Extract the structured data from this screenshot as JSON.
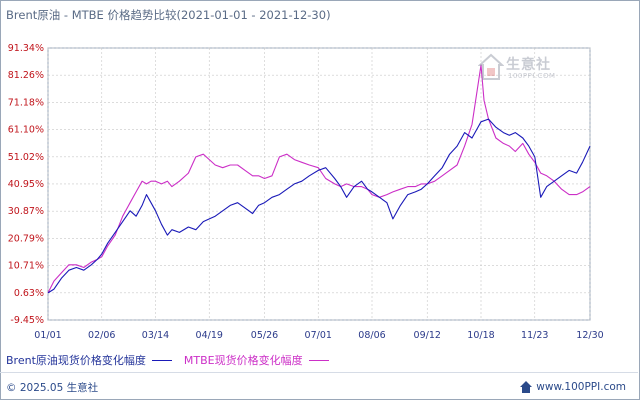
{
  "chart_data": {
    "type": "line",
    "title": "Brent原油 - MTBE 价格趋势比较(2021-01-01 - 2021-12-30)",
    "xlabel": "",
    "ylabel": "",
    "ylim": [
      -9.45,
      91.34
    ],
    "y_ticks": [
      "91.34%",
      "81.26%",
      "71.18%",
      "61.10%",
      "51.02%",
      "40.95%",
      "30.87%",
      "20.79%",
      "10.71%",
      "0.63%",
      "-9.45%"
    ],
    "y_tick_values": [
      91.34,
      81.26,
      71.18,
      61.1,
      51.02,
      40.95,
      30.87,
      20.79,
      10.71,
      0.63,
      -9.45
    ],
    "x_ticks": [
      "01/01",
      "02/06",
      "03/14",
      "04/19",
      "05/26",
      "07/01",
      "08/06",
      "09/12",
      "10/18",
      "11/23",
      "12/30"
    ],
    "grid": true,
    "legend_position": "bottom",
    "series": [
      {
        "name": "Brent原油现货价格变化幅度",
        "color": "#1a1ab8",
        "points": [
          [
            "01/01",
            0.6
          ],
          [
            "01/05",
            2
          ],
          [
            "01/10",
            6
          ],
          [
            "01/15",
            9
          ],
          [
            "01/20",
            10
          ],
          [
            "01/25",
            9
          ],
          [
            "01/30",
            11
          ],
          [
            "02/03",
            13
          ],
          [
            "02/06",
            15
          ],
          [
            "02/10",
            19
          ],
          [
            "02/15",
            23
          ],
          [
            "02/20",
            27
          ],
          [
            "02/25",
            31
          ],
          [
            "03/01",
            29
          ],
          [
            "03/05",
            33
          ],
          [
            "03/08",
            37
          ],
          [
            "03/11",
            34
          ],
          [
            "03/14",
            31
          ],
          [
            "03/18",
            26
          ],
          [
            "03/22",
            22
          ],
          [
            "03/25",
            24
          ],
          [
            "03/30",
            23
          ],
          [
            "04/05",
            25
          ],
          [
            "04/10",
            24
          ],
          [
            "04/15",
            27
          ],
          [
            "04/19",
            28
          ],
          [
            "04/23",
            29
          ],
          [
            "04/28",
            31
          ],
          [
            "05/03",
            33
          ],
          [
            "05/08",
            34
          ],
          [
            "05/13",
            32
          ],
          [
            "05/18",
            30
          ],
          [
            "05/22",
            33
          ],
          [
            "05/26",
            34
          ],
          [
            "05/31",
            36
          ],
          [
            "06/05",
            37
          ],
          [
            "06/10",
            39
          ],
          [
            "06/15",
            41
          ],
          [
            "06/20",
            42
          ],
          [
            "06/25",
            44
          ],
          [
            "07/01",
            46
          ],
          [
            "07/06",
            47
          ],
          [
            "07/12",
            43
          ],
          [
            "07/16",
            40
          ],
          [
            "07/20",
            36
          ],
          [
            "07/25",
            40
          ],
          [
            "07/30",
            42
          ],
          [
            "08/03",
            39
          ],
          [
            "08/06",
            38
          ],
          [
            "08/11",
            36
          ],
          [
            "08/16",
            34
          ],
          [
            "08/20",
            28
          ],
          [
            "08/25",
            33
          ],
          [
            "08/30",
            37
          ],
          [
            "09/04",
            38
          ],
          [
            "09/08",
            39
          ],
          [
            "09/12",
            41
          ],
          [
            "09/17",
            44
          ],
          [
            "09/22",
            47
          ],
          [
            "09/27",
            52
          ],
          [
            "10/02",
            55
          ],
          [
            "10/07",
            60
          ],
          [
            "10/12",
            58
          ],
          [
            "10/18",
            64
          ],
          [
            "10/23",
            65
          ],
          [
            "10/28",
            62
          ],
          [
            "11/02",
            60
          ],
          [
            "11/06",
            59
          ],
          [
            "11/10",
            60
          ],
          [
            "11/15",
            58
          ],
          [
            "11/19",
            55
          ],
          [
            "11/23",
            51
          ],
          [
            "11/27",
            36
          ],
          [
            "12/01",
            40
          ],
          [
            "12/06",
            42
          ],
          [
            "12/11",
            44
          ],
          [
            "12/16",
            46
          ],
          [
            "12/21",
            45
          ],
          [
            "12/25",
            49
          ],
          [
            "12/30",
            55
          ]
        ]
      },
      {
        "name": "MTBE现货价格变化幅度",
        "color": "#cc2fc7",
        "points": [
          [
            "01/01",
            0.6
          ],
          [
            "01/05",
            5
          ],
          [
            "01/10",
            8
          ],
          [
            "01/15",
            11
          ],
          [
            "01/20",
            11
          ],
          [
            "01/25",
            10
          ],
          [
            "01/30",
            12
          ],
          [
            "02/03",
            13
          ],
          [
            "02/06",
            14
          ],
          [
            "02/10",
            18
          ],
          [
            "02/15",
            22
          ],
          [
            "02/20",
            29
          ],
          [
            "02/25",
            34
          ],
          [
            "03/01",
            38
          ],
          [
            "03/05",
            42
          ],
          [
            "03/08",
            41
          ],
          [
            "03/11",
            42
          ],
          [
            "03/14",
            42
          ],
          [
            "03/18",
            41
          ],
          [
            "03/22",
            42
          ],
          [
            "03/25",
            40
          ],
          [
            "03/30",
            42
          ],
          [
            "04/05",
            45
          ],
          [
            "04/10",
            51
          ],
          [
            "04/15",
            52
          ],
          [
            "04/19",
            50
          ],
          [
            "04/23",
            48
          ],
          [
            "04/28",
            47
          ],
          [
            "05/03",
            48
          ],
          [
            "05/08",
            48
          ],
          [
            "05/13",
            46
          ],
          [
            "05/18",
            44
          ],
          [
            "05/22",
            44
          ],
          [
            "05/26",
            43
          ],
          [
            "05/31",
            44
          ],
          [
            "06/05",
            51
          ],
          [
            "06/10",
            52
          ],
          [
            "06/15",
            50
          ],
          [
            "06/20",
            49
          ],
          [
            "06/25",
            48
          ],
          [
            "07/01",
            47
          ],
          [
            "07/06",
            43
          ],
          [
            "07/12",
            41
          ],
          [
            "07/16",
            40
          ],
          [
            "07/20",
            41
          ],
          [
            "07/25",
            40
          ],
          [
            "07/30",
            40
          ],
          [
            "08/03",
            39
          ],
          [
            "08/06",
            37
          ],
          [
            "08/11",
            36
          ],
          [
            "08/16",
            37
          ],
          [
            "08/20",
            38
          ],
          [
            "08/25",
            39
          ],
          [
            "08/30",
            40
          ],
          [
            "09/04",
            40
          ],
          [
            "09/08",
            41
          ],
          [
            "09/12",
            41
          ],
          [
            "09/17",
            42
          ],
          [
            "09/22",
            44
          ],
          [
            "09/27",
            46
          ],
          [
            "10/02",
            48
          ],
          [
            "10/07",
            55
          ],
          [
            "10/12",
            63
          ],
          [
            "10/18",
            85
          ],
          [
            "10/20",
            72
          ],
          [
            "10/23",
            65
          ],
          [
            "10/28",
            58
          ],
          [
            "11/02",
            56
          ],
          [
            "11/06",
            55
          ],
          [
            "11/10",
            53
          ],
          [
            "11/15",
            56
          ],
          [
            "11/19",
            52
          ],
          [
            "11/23",
            49
          ],
          [
            "11/27",
            45
          ],
          [
            "12/01",
            44
          ],
          [
            "12/06",
            42
          ],
          [
            "12/11",
            39
          ],
          [
            "12/16",
            37
          ],
          [
            "12/21",
            37
          ],
          [
            "12/25",
            38
          ],
          [
            "12/30",
            40
          ]
        ]
      }
    ]
  },
  "legend": {
    "brent_label": "Brent原油现货价格变化幅度",
    "mtbe_label": "MTBE现货价格变化幅度"
  },
  "watermark": {
    "text": "生意社",
    "sub": "100PPI.COM"
  },
  "footer": {
    "copyright": "© 2025.05 生意社",
    "site": "www.100PPI.com"
  },
  "colors": {
    "brent": "#1a1ab8",
    "mtbe": "#cc2fc7",
    "ytick": "#c0141b",
    "xtick": "#2b3a8a",
    "grid": "#c8c8c8"
  }
}
